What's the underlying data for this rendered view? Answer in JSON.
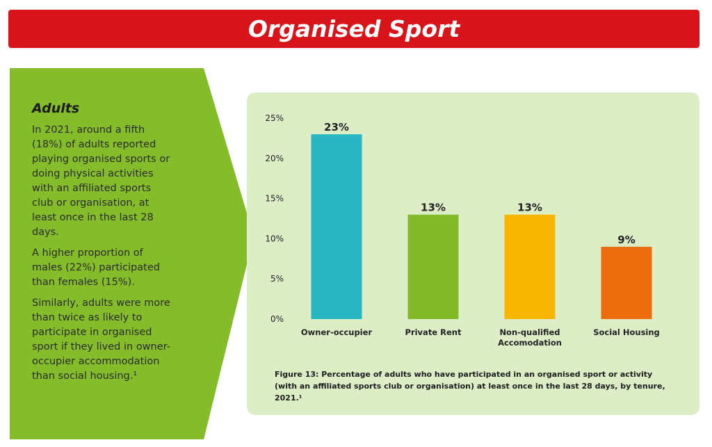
{
  "header": {
    "title": "Organised Sport"
  },
  "sidebar": {
    "heading": "Adults",
    "paragraphs": [
      "In 2021, around a fifth (18%) of adults reported playing organised sports or doing physical activities with an affiliated sports club or organisation, at least once in the last 28 days.",
      "A higher proportion of males (22%) participated than females (15%).",
      "Similarly, adults were more than twice as likely to participate in organised sport if they lived in owner-occupier accommodation than social housing.¹"
    ]
  },
  "chart_data": {
    "type": "bar",
    "categories": [
      "Owner-occupier",
      "Private Rent",
      "Non-qualified Accomodation",
      "Social Housing"
    ],
    "values": [
      23,
      13,
      13,
      9
    ],
    "value_labels": [
      "23%",
      "13%",
      "13%",
      "9%"
    ],
    "colors": [
      "#2bb6c3",
      "#83ba2a",
      "#f8b500",
      "#ec6d0c"
    ],
    "ylim": [
      0,
      25
    ],
    "yticks": [
      {
        "value": 0,
        "label": "0%"
      },
      {
        "value": 5,
        "label": "5%"
      },
      {
        "value": 10,
        "label": "10%"
      },
      {
        "value": 15,
        "label": "15%"
      },
      {
        "value": 20,
        "label": "20%"
      },
      {
        "value": 25,
        "label": "25%"
      }
    ],
    "grid": false,
    "caption": "Figure 13: Percentage of adults who have participated in an organised sport or activity (with an affiliated sports club or organisation) at least once in the last 28 days, by tenure, 2021.¹"
  }
}
